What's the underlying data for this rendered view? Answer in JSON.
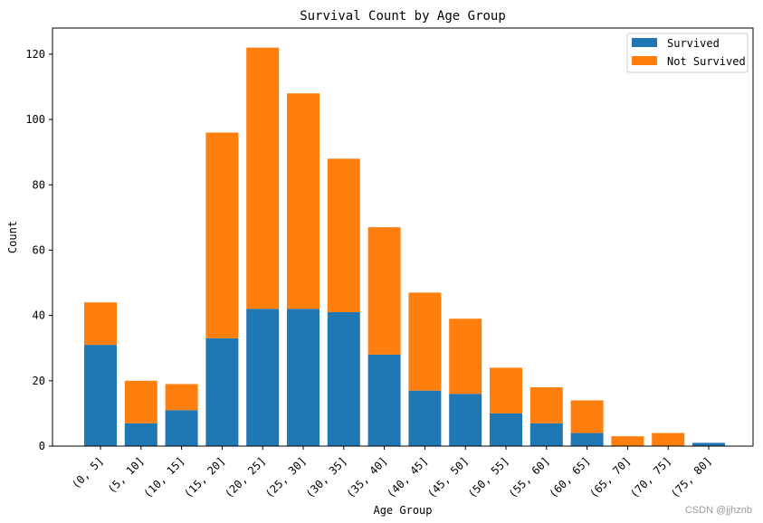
{
  "chart_data": {
    "type": "bar",
    "stacked": true,
    "title": "Survival Count by Age Group",
    "xlabel": "Age Group",
    "ylabel": "Count",
    "ylim": [
      0,
      128
    ],
    "yticks": [
      0,
      20,
      40,
      60,
      80,
      100,
      120
    ],
    "grid": false,
    "legend_position": "top-right",
    "categories": [
      "(0, 5]",
      "(5, 10]",
      "(10, 15]",
      "(15, 20]",
      "(20, 25]",
      "(25, 30]",
      "(30, 35]",
      "(35, 40]",
      "(40, 45]",
      "(45, 50]",
      "(50, 55]",
      "(55, 60]",
      "(60, 65]",
      "(65, 70]",
      "(70, 75]",
      "(75, 80]"
    ],
    "series": [
      {
        "name": "Survived",
        "color": "#1f77b4",
        "values": [
          31,
          7,
          11,
          33,
          42,
          42,
          41,
          28,
          17,
          16,
          10,
          7,
          4,
          0,
          0,
          1
        ]
      },
      {
        "name": "Not Survived",
        "color": "#ff7f0e",
        "values": [
          13,
          13,
          8,
          63,
          80,
          66,
          47,
          39,
          30,
          23,
          14,
          11,
          10,
          3,
          4,
          0
        ]
      }
    ]
  },
  "watermark": "CSDN @jjhznb"
}
